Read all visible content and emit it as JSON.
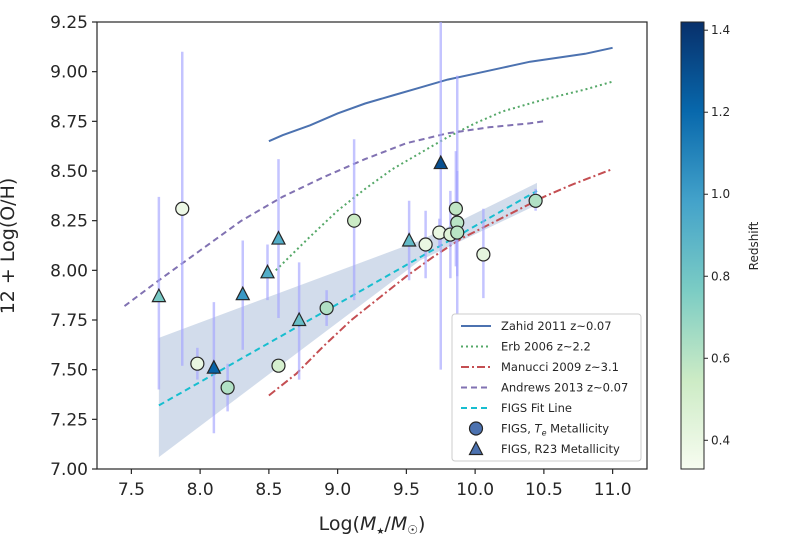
{
  "chart_data": {
    "type": "scatter",
    "xlabel": "Log(M★/M☉)",
    "xlabel_main": "Log(",
    "xlabel_mstar": "M",
    "xlabel_star": "★",
    "xlabel_slash": "/",
    "xlabel_msun": "M",
    "xlabel_sun": "☉",
    "xlabel_close": ")",
    "ylabel": "12 + Log(O/H)",
    "xlim": [
      7.25,
      11.25
    ],
    "ylim": [
      7.0,
      9.25
    ],
    "xticks": [
      "7.5",
      "8.0",
      "8.5",
      "9.0",
      "9.5",
      "10.0",
      "10.5",
      "11.0"
    ],
    "xtick_values": [
      7.5,
      8.0,
      8.5,
      9.0,
      9.5,
      10.0,
      10.5,
      11.0
    ],
    "yticks": [
      "7.00",
      "7.25",
      "7.50",
      "7.75",
      "8.00",
      "8.25",
      "8.50",
      "8.75",
      "9.00",
      "9.25"
    ],
    "ytick_values": [
      7.0,
      7.25,
      7.5,
      7.75,
      8.0,
      8.25,
      8.5,
      8.75,
      9.0,
      9.25
    ],
    "colorbar": {
      "label": "Redshift",
      "range": [
        0.33,
        1.42
      ],
      "ticks": [
        "0.4",
        "0.6",
        "0.8",
        "1.0",
        "1.2",
        "1.4"
      ],
      "tick_values": [
        0.4,
        0.6,
        0.8,
        1.0,
        1.2,
        1.4
      ],
      "colormap_stops": [
        "#f7fcf0",
        "#ccebc5",
        "#7bccc4",
        "#43a2ca",
        "#0868ac",
        "#08306b"
      ]
    },
    "series": [
      {
        "name": "Zahid 2011 z~0.07",
        "style": "solid",
        "color": "#4c72b0",
        "x": [
          8.5,
          8.6,
          8.8,
          9.0,
          9.2,
          9.4,
          9.6,
          9.8,
          10.0,
          10.2,
          10.4,
          10.6,
          10.8,
          11.0
        ],
        "y": [
          8.65,
          8.68,
          8.73,
          8.79,
          8.84,
          8.88,
          8.92,
          8.96,
          8.99,
          9.02,
          9.05,
          9.07,
          9.09,
          9.12
        ]
      },
      {
        "name": "Erb 2006 z~2.2",
        "style": "dotted",
        "color": "#55a868",
        "x": [
          8.55,
          8.8,
          9.0,
          9.2,
          9.4,
          9.6,
          9.8,
          10.0,
          10.2,
          10.5,
          10.8,
          11.0
        ],
        "y": [
          8.0,
          8.17,
          8.3,
          8.41,
          8.51,
          8.59,
          8.67,
          8.74,
          8.8,
          8.86,
          8.91,
          8.95
        ]
      },
      {
        "name": "Manucci 2009 z~3.1",
        "style": "dashdot",
        "color": "#c44e52",
        "x": [
          8.5,
          8.7,
          8.9,
          9.1,
          9.3,
          9.5,
          9.7,
          9.9,
          10.1,
          10.3,
          10.5,
          10.7,
          11.0
        ],
        "y": [
          7.37,
          7.48,
          7.62,
          7.75,
          7.86,
          7.97,
          8.07,
          8.16,
          8.23,
          8.3,
          8.37,
          8.43,
          8.51
        ]
      },
      {
        "name": "Andrews 2013 z~0.07",
        "style": "dashed",
        "color": "#8172b2",
        "x": [
          7.45,
          7.7,
          8.0,
          8.3,
          8.6,
          8.9,
          9.2,
          9.5,
          9.8,
          10.1,
          10.4,
          10.5
        ],
        "y": [
          7.82,
          7.95,
          8.1,
          8.25,
          8.37,
          8.47,
          8.56,
          8.64,
          8.69,
          8.72,
          8.74,
          8.75
        ]
      },
      {
        "name": "FIGS Fit Line",
        "style": "dashed",
        "color": "#17becf",
        "x": [
          7.7,
          10.45
        ],
        "y": [
          7.32,
          8.4
        ],
        "band_upper": [
          7.66,
          8.44
        ],
        "band_lower": [
          7.06,
          8.33
        ],
        "band_x_mid": 9.6,
        "band_upper_mid": 8.15,
        "band_lower_mid": 8.05
      }
    ],
    "points_te": {
      "label": "FIGS, T_e Metallicity",
      "label_prefix": "FIGS, ",
      "label_T": "T",
      "label_sub": "e",
      "label_suffix": " Metallicity",
      "marker": "circle",
      "data": [
        {
          "x": 7.87,
          "y": 8.31,
          "yerr_lo": 7.52,
          "yerr_hi": 9.1,
          "z": 0.38
        },
        {
          "x": 7.98,
          "y": 7.53,
          "yerr_lo": 7.45,
          "yerr_hi": 7.61,
          "z": 0.4
        },
        {
          "x": 8.2,
          "y": 7.41,
          "yerr_lo": 7.29,
          "yerr_hi": 7.53,
          "z": 0.62
        },
        {
          "x": 8.57,
          "y": 7.52,
          "yerr_lo": 7.52,
          "yerr_hi": 7.52,
          "z": 0.5
        },
        {
          "x": 8.92,
          "y": 7.81,
          "yerr_lo": 7.72,
          "yerr_hi": 7.9,
          "z": 0.62
        },
        {
          "x": 9.12,
          "y": 8.25,
          "yerr_lo": 7.85,
          "yerr_hi": 8.66,
          "z": 0.55
        },
        {
          "x": 9.64,
          "y": 8.13,
          "yerr_lo": 7.96,
          "yerr_hi": 8.3,
          "z": 0.4
        },
        {
          "x": 9.74,
          "y": 8.19,
          "yerr_lo": 8.12,
          "yerr_hi": 8.26,
          "z": 0.4
        },
        {
          "x": 9.82,
          "y": 8.18,
          "yerr_lo": 7.96,
          "yerr_hi": 8.4,
          "z": 0.45
        },
        {
          "x": 9.86,
          "y": 8.31,
          "yerr_lo": 8.02,
          "yerr_hi": 8.6,
          "z": 0.58
        },
        {
          "x": 9.87,
          "y": 8.24,
          "yerr_lo": 7.97,
          "yerr_hi": 8.5,
          "z": 0.6
        },
        {
          "x": 9.87,
          "y": 8.19,
          "yerr_lo": 7.65,
          "yerr_hi": 8.98,
          "z": 0.6
        },
        {
          "x": 10.06,
          "y": 8.08,
          "yerr_lo": 7.86,
          "yerr_hi": 8.31,
          "z": 0.42
        },
        {
          "x": 10.44,
          "y": 8.35,
          "yerr_lo": 8.3,
          "yerr_hi": 8.41,
          "z": 0.62
        }
      ]
    },
    "points_r23": {
      "label": "FIGS, R23 Metallicity",
      "marker": "triangle",
      "data": [
        {
          "x": 7.7,
          "y": 7.87,
          "yerr_lo": 7.4,
          "yerr_hi": 8.37,
          "z": 0.78
        },
        {
          "x": 8.1,
          "y": 7.51,
          "yerr_lo": 7.18,
          "yerr_hi": 7.84,
          "z": 1.22
        },
        {
          "x": 8.31,
          "y": 7.88,
          "yerr_lo": 7.6,
          "yerr_hi": 8.15,
          "z": 1.02
        },
        {
          "x": 8.49,
          "y": 7.99,
          "yerr_lo": 7.85,
          "yerr_hi": 8.13,
          "z": 0.92
        },
        {
          "x": 8.57,
          "y": 8.16,
          "yerr_lo": 7.76,
          "yerr_hi": 8.56,
          "z": 0.92
        },
        {
          "x": 8.72,
          "y": 7.75,
          "yerr_lo": 7.45,
          "yerr_hi": 8.04,
          "z": 0.84
        },
        {
          "x": 9.52,
          "y": 8.15,
          "yerr_lo": 7.95,
          "yerr_hi": 8.35,
          "z": 0.86
        },
        {
          "x": 9.75,
          "y": 8.54,
          "yerr_lo": 7.5,
          "yerr_hi": 9.25,
          "z": 1.3
        }
      ]
    },
    "legend": {
      "position": "lower-right",
      "entries": [
        "Zahid 2011 z~0.07",
        "Erb 2006 z~2.2",
        "Manucci 2009 z~3.1",
        "Andrews 2013 z~0.07",
        "FIGS Fit Line",
        "FIGS, T_e Metallicity",
        "FIGS, R23 Metallicity"
      ]
    },
    "errorbar_color": "#a5a5ff"
  }
}
